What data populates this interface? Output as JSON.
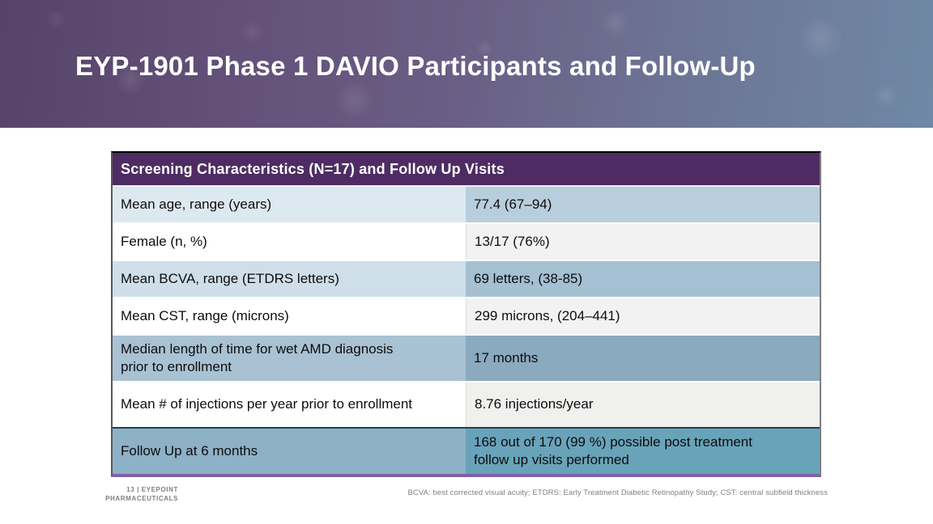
{
  "slide": {
    "title": "EYP-1901 Phase 1 DAVIO Participants and Follow-Up"
  },
  "table": {
    "header": "Screening Characteristics (N=17) and Follow Up Visits",
    "rows": [
      {
        "label": "Mean age, range (years)",
        "value": "77.4 (67–94)",
        "label_bg": "#dde9f0",
        "value_bg": "#b9cedc"
      },
      {
        "label": "Female (n, %)",
        "value": "13/17 (76%)",
        "label_bg": "#ffffff",
        "value_bg": "#f2f2f2"
      },
      {
        "label": "Mean BCVA, range (ETDRS letters)",
        "value": "69 letters, (38-85)",
        "label_bg": "#cfdfe9",
        "value_bg": "#a4c0d2"
      },
      {
        "label": "Mean CST, range (microns)",
        "value": "299 microns, (204–441)",
        "label_bg": "#ffffff",
        "value_bg": "#f2f2f2"
      },
      {
        "label": "Median length of time for wet AMD diagnosis prior to enrollment",
        "value": "17 months",
        "label_bg": "#a9c2d3",
        "value_bg": "#8aaabf"
      },
      {
        "label": "Mean # of injections per year prior to enrollment",
        "value": "8.76 injections/year",
        "label_bg": "#ffffff",
        "value_bg": "#f0f0ef"
      },
      {
        "label": "Follow Up at 6 months",
        "value": "168 out of 170 (99 %) possible post treatment follow up visits performed",
        "label_bg": "#8db1c6",
        "value_bg": "#69a3ba"
      }
    ]
  },
  "footer": {
    "brand_line1": "13 | EYEPOINT",
    "brand_line2": "PHARMACEUTICALS",
    "footnote": "BCVA: best corrected visual acuity; ETDRS: Early Treatment Diabetic Retinopathy Study; CST: central subfield thickness"
  },
  "colors": {
    "banner_gradient_left": "#564369",
    "banner_gradient_right": "#6f88a5",
    "table_header_bg": "#4e2c63",
    "table_bottom_border": "#7d62aa",
    "highlight_row_border": "#22404f",
    "footer_text": "#7f7f7f"
  }
}
